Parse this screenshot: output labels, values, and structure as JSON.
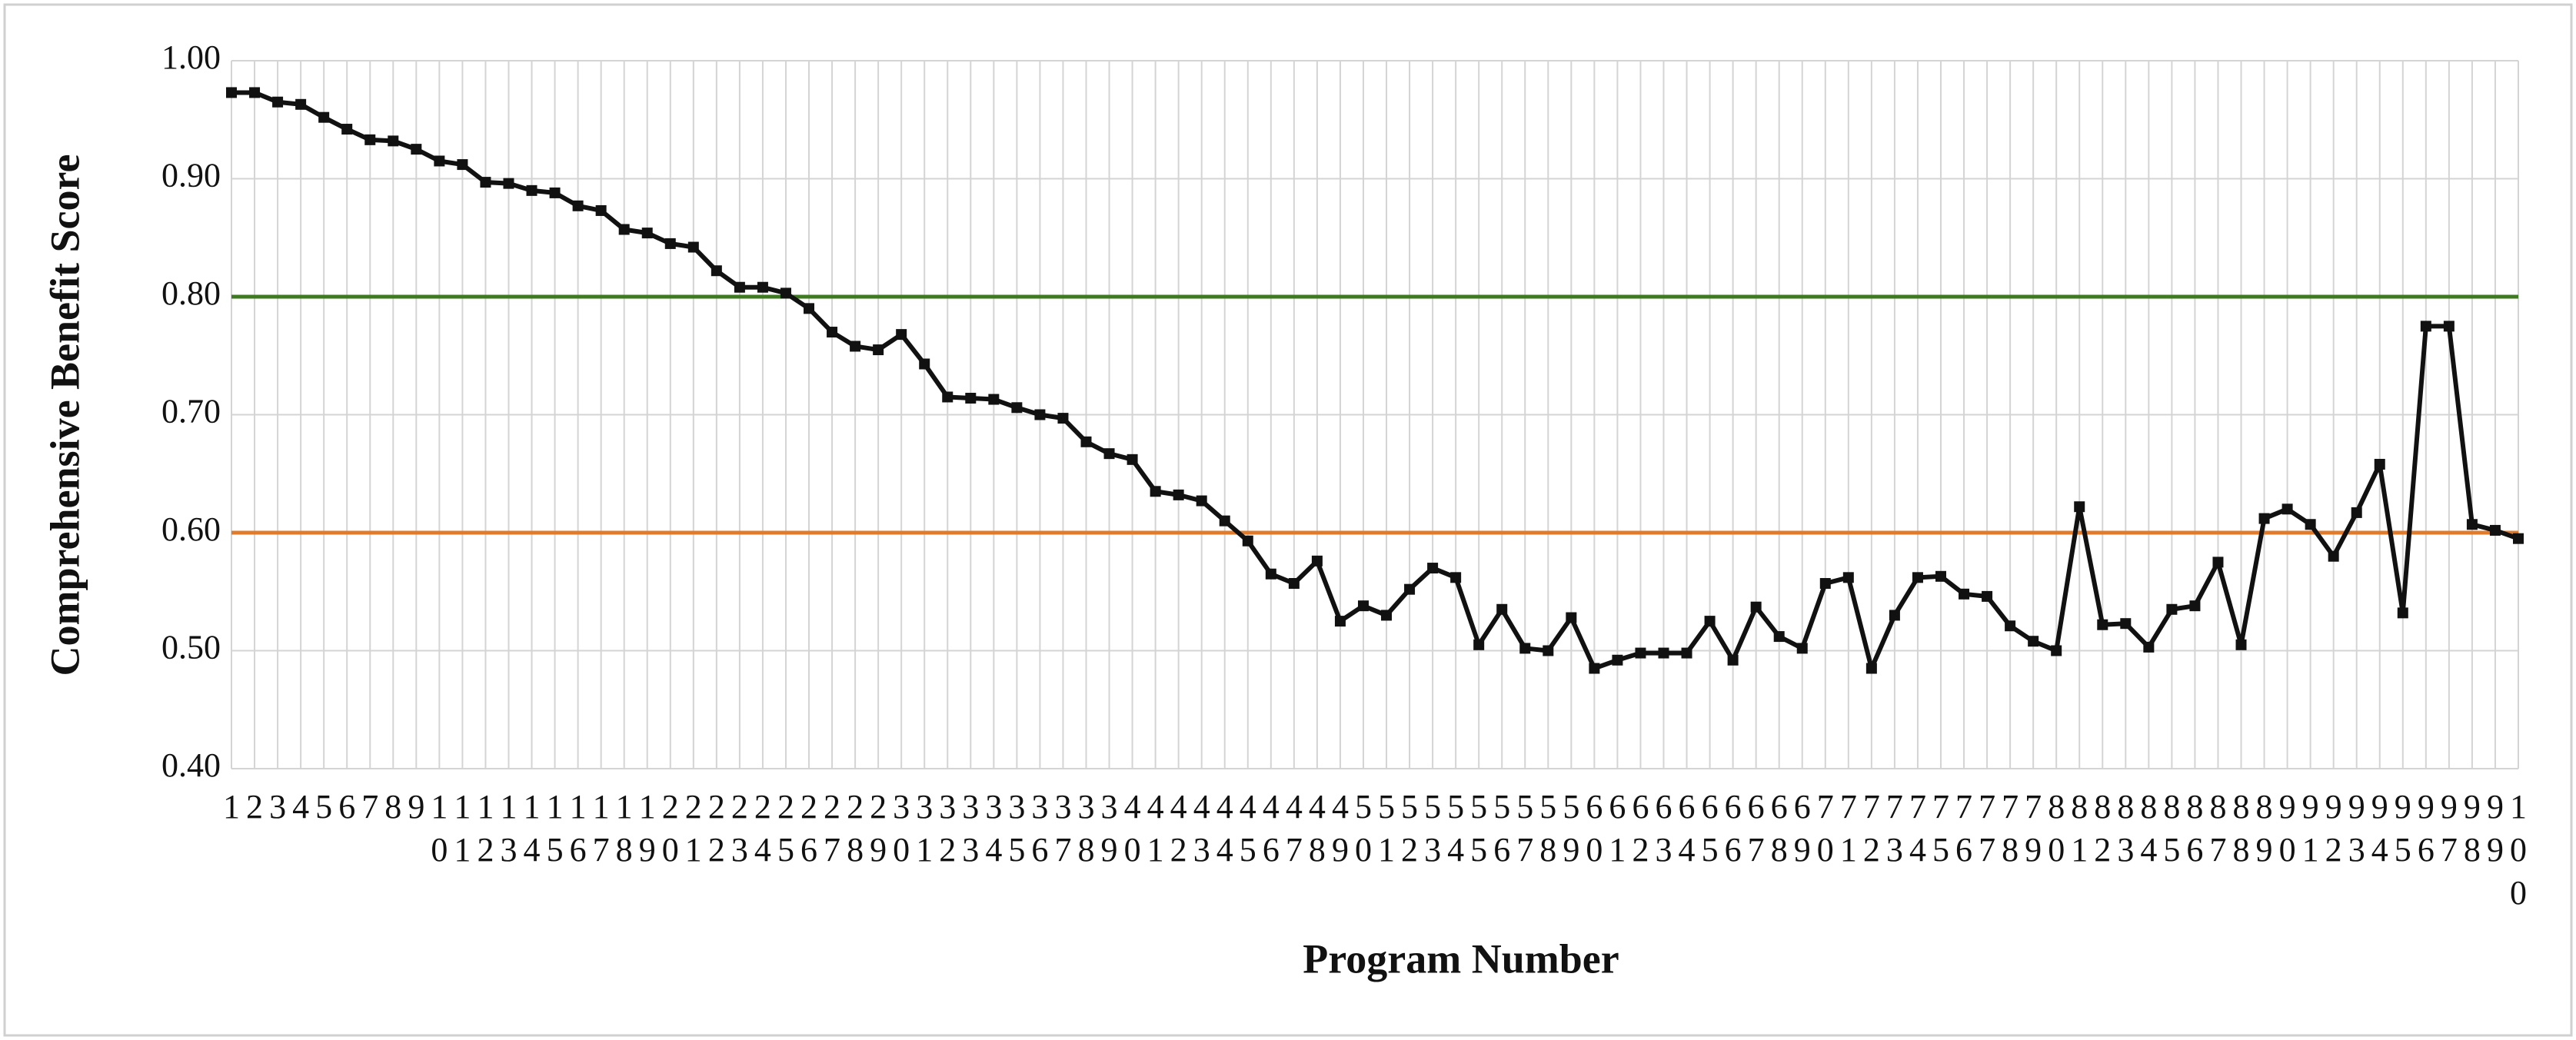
{
  "chart_data": {
    "type": "line",
    "x_label": "Program Number",
    "y_label": "Comprehensive Benefit Score",
    "categories": [
      "1",
      "2",
      "3",
      "4",
      "5",
      "6",
      "7",
      "8",
      "9",
      "10",
      "11",
      "12",
      "13",
      "14",
      "15",
      "16",
      "17",
      "18",
      "19",
      "20",
      "21",
      "22",
      "23",
      "24",
      "25",
      "26",
      "27",
      "28",
      "29",
      "30",
      "31",
      "32",
      "33",
      "34",
      "35",
      "36",
      "37",
      "38",
      "39",
      "40",
      "41",
      "42",
      "43",
      "44",
      "45",
      "46",
      "47",
      "48",
      "49",
      "50",
      "51",
      "52",
      "53",
      "54",
      "55",
      "56",
      "57",
      "58",
      "59",
      "60",
      "61",
      "62",
      "63",
      "64",
      "65",
      "66",
      "67",
      "68",
      "69",
      "70",
      "71",
      "72",
      "73",
      "74",
      "75",
      "76",
      "77",
      "78",
      "79",
      "80",
      "81",
      "82",
      "83",
      "84",
      "85",
      "86",
      "87",
      "88",
      "89",
      "90",
      "91",
      "92",
      "93",
      "94",
      "95",
      "96",
      "97",
      "98",
      "99",
      "100"
    ],
    "values": [
      0.973,
      0.973,
      0.965,
      0.963,
      0.952,
      0.942,
      0.933,
      0.932,
      0.925,
      0.915,
      0.912,
      0.897,
      0.896,
      0.89,
      0.888,
      0.877,
      0.873,
      0.857,
      0.854,
      0.845,
      0.842,
      0.822,
      0.808,
      0.808,
      0.803,
      0.79,
      0.77,
      0.758,
      0.755,
      0.768,
      0.743,
      0.715,
      0.714,
      0.713,
      0.706,
      0.7,
      0.697,
      0.677,
      0.667,
      0.662,
      0.635,
      0.632,
      0.627,
      0.61,
      0.593,
      0.565,
      0.557,
      0.576,
      0.525,
      0.538,
      0.53,
      0.552,
      0.57,
      0.562,
      0.505,
      0.535,
      0.502,
      0.5,
      0.528,
      0.485,
      0.492,
      0.498,
      0.498,
      0.498,
      0.525,
      0.492,
      0.537,
      0.512,
      0.502,
      0.557,
      0.562,
      0.485,
      0.53,
      0.562,
      0.563,
      0.548,
      0.546,
      0.521,
      0.508,
      0.5,
      0.622,
      0.522,
      0.523,
      0.503,
      0.535,
      0.538,
      0.575,
      0.505,
      0.612,
      0.62,
      0.607,
      0.58,
      0.617,
      0.658,
      0.532,
      0.775,
      0.775,
      0.607,
      0.602,
      0.595
    ],
    "color": "#111111",
    "marker": "square",
    "ylim": [
      0.4,
      1.0
    ],
    "yticks": [
      {
        "value": 0.4,
        "label": "0.40"
      },
      {
        "value": 0.5,
        "label": "0.50"
      },
      {
        "value": 0.6,
        "label": "0.60"
      },
      {
        "value": 0.7,
        "label": "0.70"
      },
      {
        "value": 0.8,
        "label": "0.80"
      },
      {
        "value": 0.9,
        "label": "0.90"
      },
      {
        "value": 1.0,
        "label": "1.00"
      }
    ],
    "grid": true,
    "reference_lines": [
      {
        "value": 0.8,
        "color": "#3d7a22"
      },
      {
        "value": 0.6,
        "color": "#e07b2c"
      }
    ]
  }
}
